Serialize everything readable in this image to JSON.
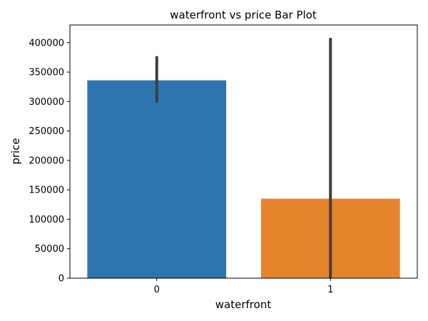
{
  "chart_data": {
    "type": "bar",
    "title": "waterfront vs price Bar Plot",
    "xlabel": "waterfront",
    "ylabel": "price",
    "categories": [
      "0",
      "1"
    ],
    "values": [
      336000,
      135000
    ],
    "error_bars": [
      [
        298000,
        377000
      ],
      [
        0,
        408000
      ]
    ],
    "colors": [
      "#2e75b0",
      "#e6842e"
    ],
    "errorbar_color": "#3f3f3f",
    "ylim": [
      0,
      430000
    ],
    "yticks": [
      0,
      50000,
      100000,
      150000,
      200000,
      250000,
      300000,
      350000,
      400000
    ],
    "ytick_labels": [
      "0",
      "50000",
      "100000",
      "150000",
      "200000",
      "250000",
      "300000",
      "350000",
      "400000"
    ],
    "grid": false,
    "legend": "none"
  }
}
